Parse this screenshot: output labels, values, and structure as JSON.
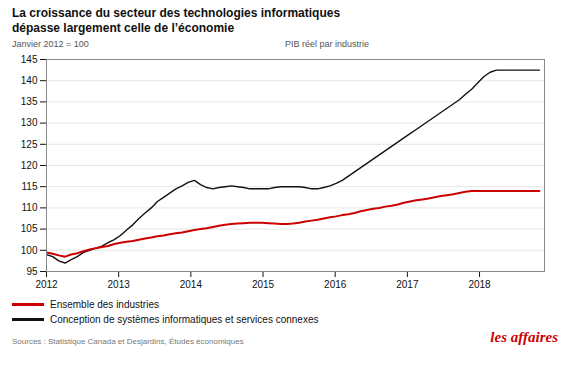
{
  "chart_data": {
    "type": "line",
    "title": "La croissance du secteur des technologies informatiques\ndépasse largement celle de l’économie",
    "subtitle": [
      "Janvier 2012 = 100",
      "PIB réel par industrie"
    ],
    "annotations": [
      "Sources : Statistique Canada et Desjardins, Études économiques",
      "les affaires"
    ],
    "x": [
      2012,
      2012.085375,
      2012.17075,
      2012.256125,
      2012.3415,
      2012.426875,
      2012.51225,
      2012.597625,
      2012.683,
      2012.768375,
      2012.85375,
      2012.939125,
      2013.0245,
      2013.109875,
      2013.19525,
      2013.280625,
      2013.366,
      2013.451375,
      2013.53675,
      2013.622125,
      2013.7075,
      2013.792875,
      2013.87825,
      2013.963625,
      2014.049,
      2014.134375,
      2014.21975,
      2014.305125,
      2014.3905,
      2014.475875,
      2014.56125,
      2014.646625,
      2014.732,
      2014.817375,
      2014.90275,
      2014.988125,
      2015.0735,
      2015.158875,
      2015.24425,
      2015.329625,
      2015.415,
      2015.500375,
      2015.58575,
      2015.671125,
      2015.7565,
      2015.841875,
      2015.92725,
      2016.012625,
      2016.098,
      2016.183375,
      2016.26875,
      2016.354125,
      2016.4395,
      2016.524875,
      2016.61025,
      2016.695625,
      2016.781,
      2016.866375,
      2016.95175,
      2017.037125,
      2017.1225,
      2017.207875,
      2017.29325,
      2017.378625,
      2017.464,
      2017.549375,
      2017.63475,
      2017.720125,
      2017.8055,
      2017.890875,
      2017.97625,
      2018.061625,
      2018.147,
      2018.232375,
      2018.31775,
      2018.403125,
      2018.4885,
      2018.573875,
      2018.65925,
      2018.744625,
      2018.83
    ],
    "series": [
      {
        "name": "Ensemble des industries",
        "color": "#cc0000",
        "values": [
          99.5,
          99.2,
          98.8,
          98.5,
          99.0,
          99.3,
          99.8,
          100.2,
          100.5,
          100.8,
          101.0,
          101.5,
          101.8,
          102.0,
          102.2,
          102.5,
          102.8,
          103.0,
          103.3,
          103.5,
          103.8,
          104.0,
          104.2,
          104.5,
          104.8,
          105.0,
          105.2,
          105.5,
          105.8,
          106.0,
          106.2,
          106.3,
          106.4,
          106.5,
          106.5,
          106.5,
          106.4,
          106.3,
          106.2,
          106.2,
          106.3,
          106.5,
          106.8,
          107.0,
          107.2,
          107.5,
          107.8,
          108.0,
          108.3,
          108.5,
          108.8,
          109.2,
          109.5,
          109.8,
          110.0,
          110.3,
          110.5,
          110.8,
          111.2,
          111.5,
          111.8,
          112.0,
          112.2,
          112.5,
          112.8,
          113.0,
          113.2,
          113.5,
          113.8,
          114.0,
          114.0,
          114.0,
          114.0,
          114.0,
          114.0,
          114.0,
          114.0,
          114.0,
          114.0,
          114.0,
          114.0
        ]
      },
      {
        "name": "Conception de systèmes informatiques et services connexes",
        "color": "#111111",
        "values": [
          99.0,
          98.5,
          97.5,
          97.0,
          97.8,
          98.5,
          99.5,
          100.0,
          100.5,
          101.0,
          101.8,
          102.5,
          103.5,
          104.8,
          106.0,
          107.5,
          108.8,
          110.0,
          111.5,
          112.5,
          113.5,
          114.5,
          115.2,
          116.0,
          116.5,
          115.5,
          114.8,
          114.5,
          114.8,
          115.0,
          115.2,
          115.0,
          114.8,
          114.5,
          114.5,
          114.5,
          114.5,
          114.8,
          115.0,
          115.0,
          115.0,
          115.0,
          114.8,
          114.5,
          114.5,
          114.8,
          115.2,
          115.8,
          116.5,
          117.5,
          118.5,
          119.5,
          120.5,
          121.5,
          122.5,
          123.5,
          124.5,
          125.5,
          126.5,
          127.5,
          128.5,
          129.5,
          130.5,
          131.5,
          132.5,
          133.5,
          134.5,
          135.5,
          136.8,
          138.0,
          139.5,
          141.0,
          142.0,
          142.5,
          142.5,
          142.5,
          142.5,
          142.5,
          142.5,
          142.5,
          142.5
        ]
      }
    ],
    "xlim": [
      2012,
      2018.9
    ],
    "xticks": [
      2012,
      2013,
      2014,
      2015,
      2016,
      2017,
      2018
    ],
    "ylim": [
      95,
      145
    ],
    "yticks": [
      95,
      100,
      105,
      110,
      115,
      120,
      125,
      130,
      135,
      140,
      145
    ],
    "grid": true,
    "legend": "bottom"
  }
}
